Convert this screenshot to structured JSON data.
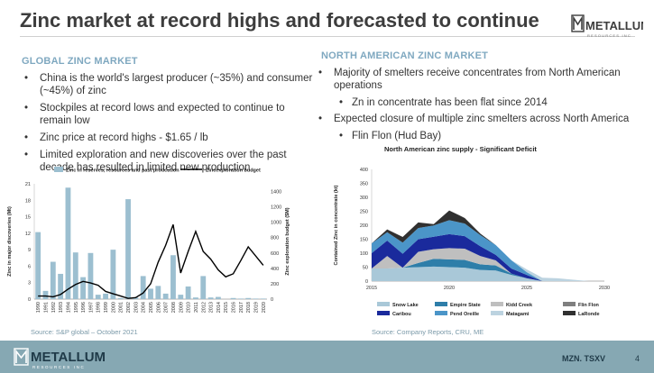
{
  "title": "Zinc market at record highs and forecasted to continue",
  "logo": {
    "wordmark": "METALLUM",
    "tagline": "RESOURCES INC",
    "icon": "metallum-m-logo-icon"
  },
  "left": {
    "heading": "GLOBAL ZINC MARKET",
    "bullets": [
      "China is the world's largest producer (~35%) and consumer (~45%) of zinc",
      "Stockpiles at record lows and expected to continue to remain low",
      "Zinc price at record highs - $1.65 / lb",
      "Limited exploration and new discoveries over the past decade has resulted in limited new production"
    ],
    "source": "Source: S&P global – October 2021"
  },
  "right": {
    "heading": "NORTH AMERICAN ZINC MARKET",
    "bullets": [
      {
        "text": "Majority of smelters receive concentrates from North American operations",
        "sub": [
          "Zn in concentrate has been flat since 2014"
        ]
      },
      {
        "text": "Expected closure of multiple zinc smelters across North America",
        "sub": [
          "Flin Flon (Hud Bay)"
        ]
      }
    ],
    "source": "Source: Company Reports, CRU, ME"
  },
  "footer": {
    "ticker": "MZN. TSXV",
    "page": "4"
  },
  "chart_data": [
    {
      "type": "bar",
      "title": "",
      "categories": [
        "1990",
        "1991",
        "1992",
        "1993",
        "1994",
        "1995",
        "1996",
        "1997",
        "1998",
        "1999",
        "2000",
        "2001",
        "2002",
        "2003",
        "2004",
        "2005",
        "2006",
        "2007",
        "2008",
        "2009",
        "2010",
        "2011",
        "2012",
        "2013",
        "2014",
        "2015",
        "2016",
        "2017",
        "2018",
        "2019",
        "2020"
      ],
      "series": [
        {
          "name": "Zinc in reserves, resources and past prodcution",
          "kind": "bar",
          "axis": "left",
          "color": "#9cbfd0",
          "values": [
            12.2,
            1.5,
            6.8,
            4.6,
            20.3,
            8.5,
            4.0,
            8.4,
            0.8,
            1.0,
            9.0,
            0.2,
            18.2,
            0.3,
            4.2,
            1.9,
            2.4,
            1.0,
            8.0,
            0.8,
            2.3,
            0.3,
            4.2,
            0.3,
            0.4,
            0,
            0.2,
            0.1,
            0.2,
            0.1,
            0.1
          ]
        },
        {
          "name": "Zincexploration budget",
          "kind": "line",
          "axis": "right",
          "color": "#000000",
          "values": [
            40,
            40,
            30,
            60,
            130,
            190,
            230,
            210,
            180,
            100,
            70,
            40,
            10,
            20,
            80,
            200,
            480,
            700,
            970,
            340,
            620,
            880,
            620,
            520,
            380,
            290,
            330,
            500,
            680,
            560,
            440
          ]
        }
      ],
      "ylabel": "Zinc in major discoveries (Mt)",
      "y2label": "Zinc exploration budget ($M)",
      "ylim": [
        0,
        21
      ],
      "yticks": [
        0,
        3,
        6,
        9,
        12,
        15,
        18,
        21
      ],
      "y2lim": [
        0,
        1500
      ],
      "y2ticks": [
        0,
        200,
        400,
        600,
        800,
        1000,
        1200,
        1400
      ],
      "legend": "top",
      "grid": false
    },
    {
      "type": "area",
      "title": "North American zinc supply - Significant Deficit",
      "x": [
        2015,
        2016,
        2017,
        2018,
        2019,
        2020,
        2021,
        2022,
        2023,
        2024,
        2025,
        2026,
        2027,
        2028,
        2029,
        2030
      ],
      "xticks": [
        2015,
        2020,
        2025,
        2030
      ],
      "series": [
        {
          "name": "Snow Lake",
          "color": "#a9c8d8",
          "values": [
            45,
            45,
            48,
            50,
            52,
            50,
            48,
            40,
            38,
            22,
            10,
            0,
            0,
            0,
            0,
            0
          ]
        },
        {
          "name": "Empire State",
          "color": "#2e7ea9",
          "values": [
            0,
            0,
            0,
            15,
            28,
            28,
            28,
            20,
            18,
            5,
            0,
            0,
            0,
            0,
            0,
            0
          ]
        },
        {
          "name": "Kidd Creek",
          "color": "#bfbfbf",
          "values": [
            0,
            45,
            0,
            40,
            34,
            40,
            40,
            30,
            18,
            0,
            0,
            0,
            0,
            0,
            0,
            0
          ]
        },
        {
          "name": "Flin Flon",
          "color": "#7f7f7f",
          "values": [
            0,
            0,
            0,
            0,
            0,
            0,
            0,
            0,
            0,
            0,
            0,
            0,
            0,
            0,
            0,
            0
          ]
        },
        {
          "name": "Caribou",
          "color": "#1a2a9c",
          "values": [
            55,
            55,
            50,
            45,
            45,
            50,
            45,
            35,
            20,
            18,
            12,
            0,
            0,
            0,
            0,
            0
          ]
        },
        {
          "name": "Pend Oreille",
          "color": "#4b95c8",
          "values": [
            35,
            30,
            40,
            40,
            40,
            50,
            45,
            40,
            35,
            30,
            10,
            0,
            0,
            0,
            0,
            0
          ]
        },
        {
          "name": "Matagami",
          "color": "#bcd3e0",
          "values": [
            0,
            0,
            0,
            0,
            0,
            0,
            0,
            0,
            0,
            0,
            10,
            12,
            10,
            5,
            0,
            0
          ]
        },
        {
          "name": "LaRonde",
          "color": "#303030",
          "values": [
            0,
            10,
            20,
            20,
            5,
            35,
            20,
            5,
            0,
            0,
            0,
            0,
            0,
            0,
            0,
            0
          ]
        }
      ],
      "ylabel": "Contained Zinc in concentrate (kt)",
      "xlim": [
        2015,
        2030
      ],
      "ylim": [
        0,
        400
      ],
      "yticks": [
        0,
        50,
        100,
        150,
        200,
        250,
        300,
        350,
        400
      ],
      "legend": "bottom",
      "grid": false
    }
  ]
}
